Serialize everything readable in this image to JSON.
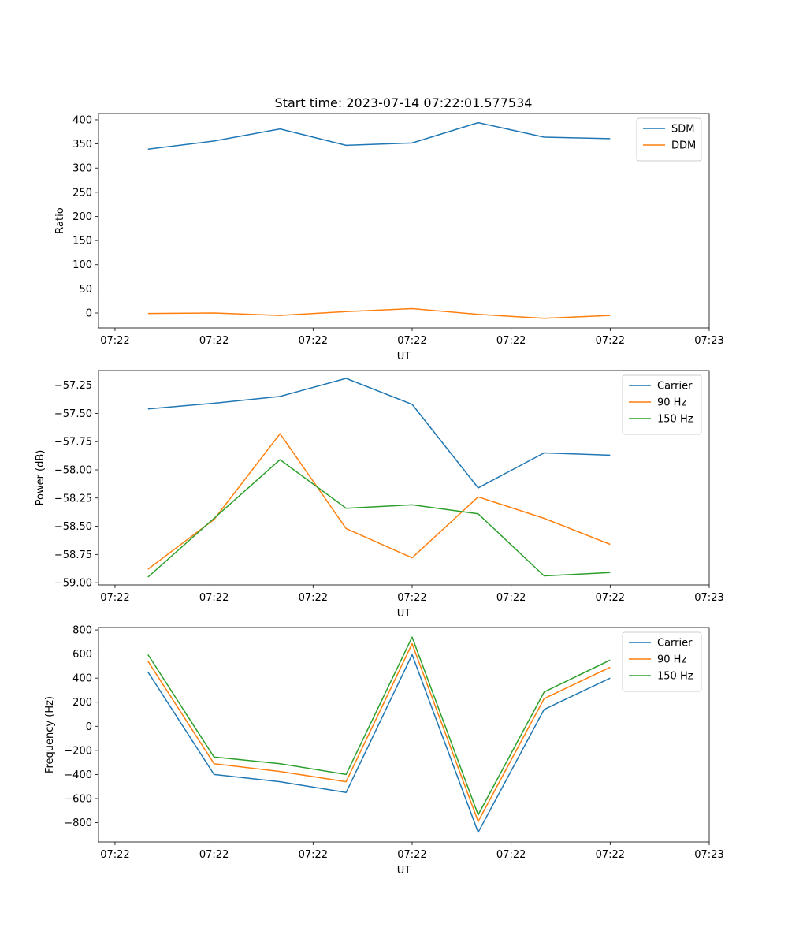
{
  "figure": {
    "title": "Start time: 2023-07-14 07:22:01.577534"
  },
  "colors": {
    "blue": "#1f77b4",
    "orange": "#ff7f0e",
    "green": "#2ca02c",
    "frame": "#000000",
    "legend_border": "#cccccc"
  },
  "chart_data": [
    {
      "type": "line",
      "title": "Start time: 2023-07-14 07:22:01.577534",
      "xlabel": "UT",
      "ylabel": "Ratio",
      "x": [
        1,
        2,
        3,
        4,
        5,
        6,
        7,
        8
      ],
      "xlim": [
        0.25,
        9.5
      ],
      "x_ticks": [
        0.5,
        2,
        3.5,
        5,
        6.5,
        8,
        9.5
      ],
      "x_tick_labels": [
        "07:22",
        "07:22",
        "07:22",
        "07:22",
        "07:22",
        "07:22",
        "07:23"
      ],
      "ylim": [
        -31,
        413
      ],
      "y_ticks": [
        0,
        50,
        100,
        150,
        200,
        250,
        300,
        350,
        400
      ],
      "legend_loc": "top-right",
      "series": [
        {
          "name": "SDM",
          "color": "#1f77b4",
          "values": [
            339,
            356,
            381,
            347,
            352,
            394,
            364,
            361
          ]
        },
        {
          "name": "DDM",
          "color": "#ff7f0e",
          "values": [
            -1,
            0,
            -5,
            3,
            9,
            -3,
            -11,
            -5
          ]
        }
      ]
    },
    {
      "type": "line",
      "xlabel": "UT",
      "ylabel": "Power (dB)",
      "x": [
        1,
        2,
        3,
        4,
        5,
        6,
        7,
        8
      ],
      "xlim": [
        0.25,
        9.5
      ],
      "x_ticks": [
        0.5,
        2,
        3.5,
        5,
        6.5,
        8,
        9.5
      ],
      "x_tick_labels": [
        "07:22",
        "07:22",
        "07:22",
        "07:22",
        "07:22",
        "07:22",
        "07:23"
      ],
      "ylim": [
        -59.02,
        -57.12
      ],
      "y_ticks": [
        -59.0,
        -58.75,
        -58.5,
        -58.25,
        -58.0,
        -57.75,
        -57.5,
        -57.25
      ],
      "y_tick_labels": [
        "−59.00",
        "−58.75",
        "−58.50",
        "−58.25",
        "−58.00",
        "−57.75",
        "−57.50",
        "−57.25"
      ],
      "legend_loc": "top-right",
      "series": [
        {
          "name": "Carrier",
          "color": "#1f77b4",
          "values": [
            -57.46,
            -57.41,
            -57.35,
            -57.19,
            -57.42,
            -58.16,
            -57.85,
            -57.87
          ]
        },
        {
          "name": "90 Hz",
          "color": "#ff7f0e",
          "values": [
            -58.88,
            -58.44,
            -57.68,
            -58.52,
            -58.78,
            -58.24,
            -58.43,
            -58.66
          ]
        },
        {
          "name": "150 Hz",
          "color": "#2ca02c",
          "values": [
            -58.95,
            -58.43,
            -57.91,
            -58.34,
            -58.31,
            -58.39,
            -58.94,
            -58.91
          ]
        }
      ]
    },
    {
      "type": "line",
      "xlabel": "UT",
      "ylabel": "Frequency (Hz)",
      "x": [
        1,
        2,
        3,
        4,
        5,
        6,
        7,
        8
      ],
      "xlim": [
        0.25,
        9.5
      ],
      "x_ticks": [
        0.5,
        2,
        3.5,
        5,
        6.5,
        8,
        9.5
      ],
      "x_tick_labels": [
        "07:22",
        "07:22",
        "07:22",
        "07:22",
        "07:22",
        "07:22",
        "07:23"
      ],
      "ylim": [
        -960,
        820
      ],
      "y_ticks": [
        -800,
        -600,
        -400,
        -200,
        0,
        200,
        400,
        600,
        800
      ],
      "y_tick_labels": [
        "−800",
        "−600",
        "−400",
        "−200",
        "0",
        "200",
        "400",
        "600",
        "800"
      ],
      "legend_loc": "top-right",
      "series": [
        {
          "name": "Carrier",
          "color": "#1f77b4",
          "values": [
            450,
            -400,
            -460,
            -550,
            595,
            -880,
            140,
            400
          ]
        },
        {
          "name": "90 Hz",
          "color": "#ff7f0e",
          "values": [
            540,
            -310,
            -375,
            -460,
            685,
            -790,
            230,
            490
          ]
        },
        {
          "name": "150 Hz",
          "color": "#2ca02c",
          "values": [
            595,
            -255,
            -310,
            -400,
            740,
            -735,
            285,
            550
          ]
        }
      ]
    }
  ]
}
